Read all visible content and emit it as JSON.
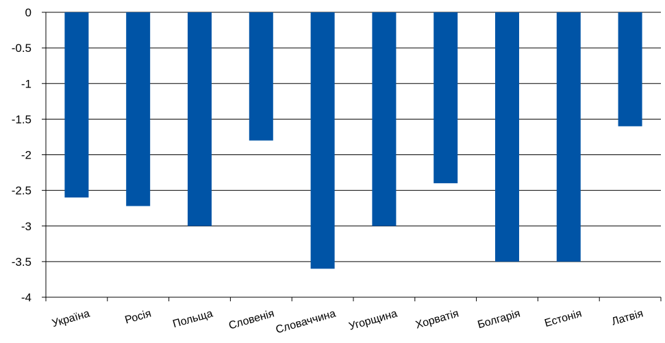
{
  "chart_data": {
    "type": "bar",
    "title": "",
    "categories": [
      "Україна",
      "Росія",
      "Польща",
      "Словенія",
      "Словаччина",
      "Угорщина",
      "Хорватія",
      "Болгарія",
      "Естонія",
      "Латвія"
    ],
    "series": [
      {
        "values": [
          -2.6,
          -2.72,
          -3.0,
          -1.8,
          -3.6,
          -3.0,
          -2.4,
          -3.5,
          -3.5,
          -1.6
        ]
      }
    ],
    "yticks": [
      "0",
      "-0.5",
      "-1",
      "-1.5",
      "-2",
      "-2.5",
      "-3",
      "-3.5",
      "-4"
    ],
    "ylim": [
      -4,
      0
    ],
    "xlabel": "",
    "ylabel": "",
    "grid": true,
    "legend": "none",
    "bar_color": "#0054a6"
  }
}
